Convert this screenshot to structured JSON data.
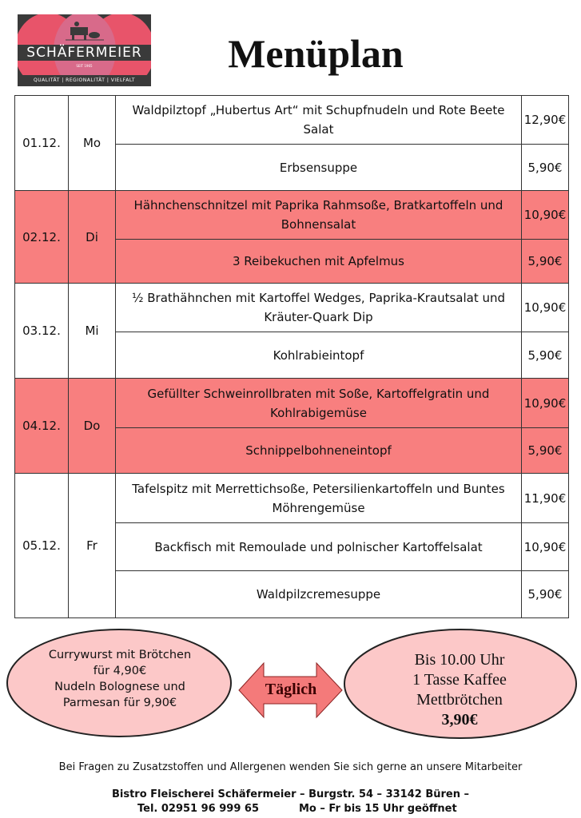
{
  "logo": {
    "brand": "SCHÄFERMEIER",
    "since": "SEIT 1965",
    "tagline": "QUALITÄT | REGIONALITÄT | VIELFALT",
    "colors": [
      "#e8546a",
      "#3a3a3a",
      "#d86a8a"
    ]
  },
  "title": "Menüplan",
  "colors": {
    "highlight": "#f87f7f",
    "ellipse": "#fcc8c8"
  },
  "days": [
    {
      "date": "01.12.",
      "day": "Mo",
      "pink": false,
      "items": [
        {
          "dish": "Waldpilztopf „Hubertus Art“ mit Schupfnudeln und Rote Beete Salat",
          "price": "12,90€"
        },
        {
          "dish": "Erbsensuppe",
          "price": "5,90€"
        }
      ]
    },
    {
      "date": "02.12.",
      "day": "Di",
      "pink": true,
      "items": [
        {
          "dish": "Hähnchenschnitzel mit Paprika Rahmsoße, Bratkartoffeln und Bohnensalat",
          "price": "10,90€"
        },
        {
          "dish": "3 Reibekuchen mit Apfelmus",
          "price": "5,90€"
        }
      ]
    },
    {
      "date": "03.12.",
      "day": "Mi",
      "pink": false,
      "items": [
        {
          "dish": "½ Brathähnchen mit Kartoffel Wedges, Paprika-Krautsalat und Kräuter-Quark Dip",
          "price": "10,90€"
        },
        {
          "dish": "Kohlrabieintopf",
          "price": "5,90€"
        }
      ]
    },
    {
      "date": "04.12.",
      "day": "Do",
      "pink": true,
      "items": [
        {
          "dish": "Gefüllter Schweinrollbraten mit Soße, Kartoffelgratin und Kohlrabigemüse",
          "price": "10,90€"
        },
        {
          "dish": "Schnippelbohneneintopf",
          "price": "5,90€"
        }
      ]
    },
    {
      "date": "05.12.",
      "day": "Fr",
      "pink": false,
      "items": [
        {
          "dish": "Tafelspitz mit Merrettichsoße, Petersilienkartoffeln und Buntes Möhrengemüse",
          "price": "11,90€"
        },
        {
          "dish": "Backfisch mit Remoulade und polnischer Kartoffelsalat",
          "price": "10,90€"
        },
        {
          "dish": "Waldpilzcremesuppe",
          "price": "5,90€"
        }
      ]
    }
  ],
  "specials": {
    "left": [
      "Currywurst mit Brötchen",
      "für 4,90€",
      "Nudeln Bolognese und",
      "Parmesan für 9,90€"
    ],
    "arrow": "Täglich",
    "right": [
      "Bis 10.00 Uhr",
      "1 Tasse Kaffee",
      "Mettbrötchen",
      "3,90€"
    ]
  },
  "footer": {
    "allergen": "Bei Fragen zu Zusatzstoffen und Allergenen wenden Sie sich gerne an unsere Mitarbeiter",
    "address": "Bistro Fleischerei Schäfermeier – Burgstr. 54 – 33142 Büren –",
    "phone": "Tel. 02951 96 999 65",
    "hours": "Mo – Fr bis 15 Uhr geöffnet"
  }
}
